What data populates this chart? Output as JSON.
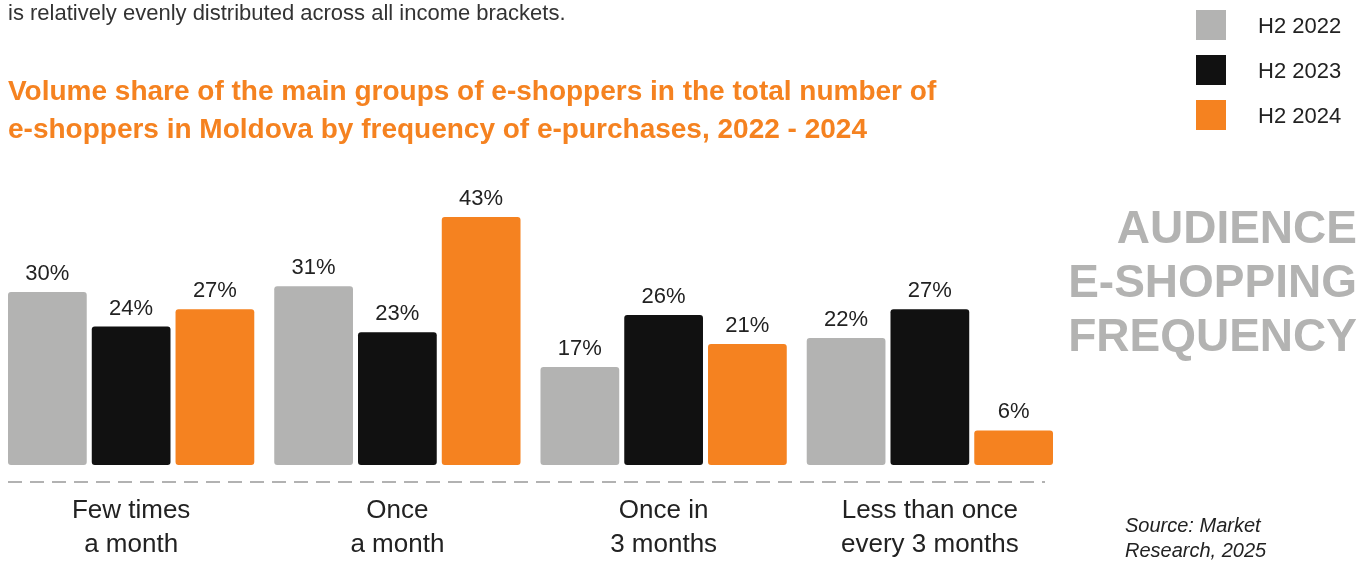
{
  "chart_data": {
    "type": "bar",
    "title": "Volume share of the main groups of e-shoppers in the total number of e-shoppers in Moldova by frequency of e-purchases, 2022 - 2024",
    "categories": [
      "Few times\na month",
      "Once\na month",
      "Once in\n3 months",
      "Less than once\nevery 3 months"
    ],
    "series": [
      {
        "name": "H2 2022",
        "color": "#b3b3b2",
        "values": [
          30,
          31,
          17,
          22
        ],
        "value_labels": [
          "30%",
          "31%",
          "17%",
          "22%"
        ]
      },
      {
        "name": "H2 2023",
        "color": "#111111",
        "values": [
          24,
          23,
          26,
          27
        ],
        "value_labels": [
          "24%",
          "23%",
          "26%",
          "27%"
        ]
      },
      {
        "name": "H2 2024",
        "color": "#f58220",
        "values": [
          27,
          43,
          21,
          6
        ],
        "value_labels": [
          "27%",
          "43%",
          "21%",
          "6%"
        ]
      }
    ],
    "legend": "top right",
    "annotations": [
      "is relatively evenly distributed across all income brackets.",
      "AUDIENCE E-SHOPPING FREQUENCY",
      "Source: Market Research, 2025"
    ]
  }
}
